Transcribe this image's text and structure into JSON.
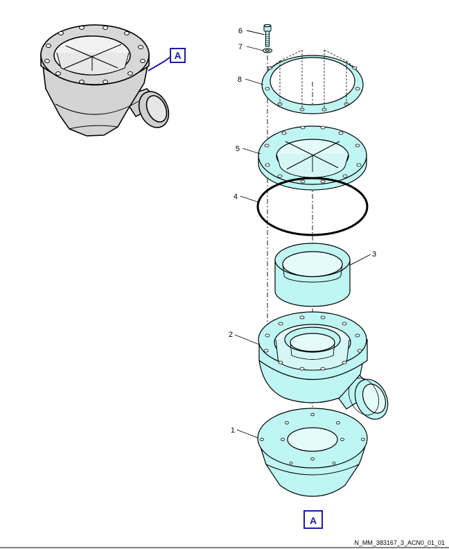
{
  "figure_id": "N_MM_383167_3_ACN0_01_01",
  "detail_ref_top": "A",
  "detail_ref_bottom": "A",
  "colors": {
    "part_fill": "#bff5f2",
    "overview_fill": "#d4d4d4",
    "callout_blue": "#1a1aa6",
    "stroke": "#000000"
  },
  "parts": [
    {
      "number": "1",
      "name": "base-cone"
    },
    {
      "number": "2",
      "name": "housing"
    },
    {
      "number": "3",
      "name": "cylinder-insert"
    },
    {
      "number": "4",
      "name": "o-ring"
    },
    {
      "number": "5",
      "name": "flange-plate"
    },
    {
      "number": "6",
      "name": "bolt"
    },
    {
      "number": "7",
      "name": "washer"
    },
    {
      "number": "8",
      "name": "gasket"
    }
  ]
}
